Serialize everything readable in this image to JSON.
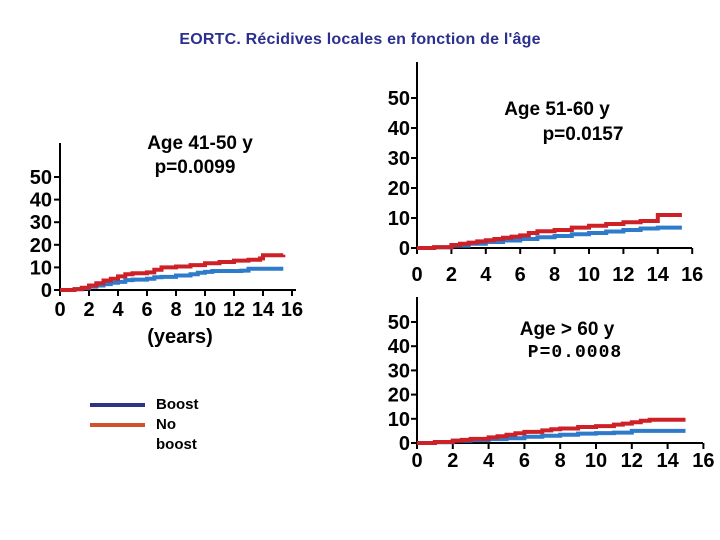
{
  "slide": {
    "title": "EORTC. Récidives locales en fonction de l'âge",
    "title_color": "#2B2F8E"
  },
  "colors": {
    "curve_boost": "#2E7BCB",
    "curve_no_boost": "#CE2027",
    "legend_boost": "#2E3388",
    "legend_no_boost": "#D2502E",
    "axis": "#000000",
    "background": "#FFFFFF"
  },
  "legend": {
    "position": "bottom-left",
    "items": [
      {
        "label": "Boost",
        "color": "#2E3388",
        "label_lines": [
          "Boost"
        ]
      },
      {
        "label": "No boost",
        "color": "#D2502E",
        "label_lines": [
          "No",
          "boost"
        ]
      }
    ]
  },
  "chart_data": [
    {
      "type": "line",
      "subtype": "step-cumulative-incidence",
      "title": "Age 41-50 y",
      "p_value": "p=0.0099",
      "xlabel": "(years)",
      "ylabel": "",
      "xlim": [
        0,
        16.3
      ],
      "ylim": [
        0,
        55
      ],
      "grid": false,
      "x_ticks": [
        0,
        2,
        4,
        6,
        8,
        10,
        12,
        14,
        16
      ],
      "y_ticks": [
        0,
        10,
        20,
        30,
        40,
        50
      ],
      "series": [
        {
          "name": "Boost",
          "color": "#2E7BCB",
          "points": [
            [
              0,
              0
            ],
            [
              1,
              0.3
            ],
            [
              1.5,
              0.8
            ],
            [
              2,
              1.5
            ],
            [
              2.5,
              2
            ],
            [
              3,
              2.6
            ],
            [
              3.5,
              3.2
            ],
            [
              4,
              3.6
            ],
            [
              4.5,
              4.4
            ],
            [
              5,
              4.6
            ],
            [
              6,
              5
            ],
            [
              6.5,
              5.6
            ],
            [
              7,
              5.8
            ],
            [
              8,
              6.4
            ],
            [
              9,
              7
            ],
            [
              9.5,
              7.6
            ],
            [
              10,
              8
            ],
            [
              10.5,
              8.4
            ],
            [
              12.5,
              8.6
            ],
            [
              13,
              9.4
            ],
            [
              15.4,
              9.4
            ]
          ]
        },
        {
          "name": "No boost",
          "color": "#CE2027",
          "points": [
            [
              0,
              0
            ],
            [
              1,
              0.4
            ],
            [
              1.5,
              1
            ],
            [
              2,
              2
            ],
            [
              2.5,
              3
            ],
            [
              3,
              4.2
            ],
            [
              3.5,
              5
            ],
            [
              4,
              6
            ],
            [
              4.5,
              7
            ],
            [
              5,
              7.4
            ],
            [
              6,
              7.8
            ],
            [
              6.5,
              9
            ],
            [
              7,
              10
            ],
            [
              8,
              10.4
            ],
            [
              9,
              11
            ],
            [
              10,
              11.8
            ],
            [
              11,
              12.4
            ],
            [
              12,
              13
            ],
            [
              13,
              13.4
            ],
            [
              13.8,
              14
            ],
            [
              14,
              15.4
            ],
            [
              15.4,
              15.6
            ]
          ]
        }
      ]
    },
    {
      "type": "line",
      "subtype": "step-cumulative-incidence",
      "title": "Age 51-60 y",
      "p_value": "p=0.0157",
      "xlabel": "",
      "ylabel": "",
      "xlim": [
        0,
        16.3
      ],
      "ylim": [
        0,
        55
      ],
      "grid": false,
      "x_ticks": [
        0,
        2,
        4,
        6,
        8,
        10,
        12,
        14,
        16
      ],
      "y_ticks": [
        0,
        10,
        20,
        30,
        40,
        50
      ],
      "series": [
        {
          "name": "Boost",
          "color": "#2E7BCB",
          "points": [
            [
              0,
              0
            ],
            [
              1,
              0.2
            ],
            [
              2,
              0.8
            ],
            [
              3,
              1.4
            ],
            [
              4,
              2
            ],
            [
              5,
              2.5
            ],
            [
              6,
              3
            ],
            [
              7,
              3.6
            ],
            [
              8,
              4
            ],
            [
              9,
              4.6
            ],
            [
              10,
              5
            ],
            [
              11,
              5.5
            ],
            [
              12,
              6
            ],
            [
              13,
              6.5
            ],
            [
              14,
              6.8
            ],
            [
              15.4,
              6.8
            ]
          ]
        },
        {
          "name": "No boost",
          "color": "#CE2027",
          "points": [
            [
              0,
              0
            ],
            [
              1,
              0.3
            ],
            [
              2,
              1
            ],
            [
              2.5,
              1.4
            ],
            [
              3,
              1.8
            ],
            [
              3.5,
              2.2
            ],
            [
              4,
              2.6
            ],
            [
              4.5,
              3
            ],
            [
              5,
              3.4
            ],
            [
              5.5,
              3.8
            ],
            [
              6,
              4.2
            ],
            [
              6.5,
              5
            ],
            [
              7,
              5.6
            ],
            [
              8,
              6
            ],
            [
              9,
              6.8
            ],
            [
              10,
              7.4
            ],
            [
              11,
              8
            ],
            [
              12,
              8.6
            ],
            [
              13,
              9
            ],
            [
              13.9,
              9
            ],
            [
              14,
              11
            ],
            [
              15.4,
              11
            ]
          ]
        }
      ]
    },
    {
      "type": "line",
      "subtype": "step-cumulative-incidence",
      "title": "Age > 60 y",
      "p_value": "P=0.0008",
      "xlabel": "",
      "ylabel": "",
      "xlim": [
        0,
        16.3
      ],
      "ylim": [
        0,
        55
      ],
      "grid": false,
      "x_ticks": [
        0,
        2,
        4,
        6,
        8,
        10,
        12,
        14,
        16
      ],
      "y_ticks": [
        0,
        10,
        20,
        30,
        40,
        50
      ],
      "series": [
        {
          "name": "Boost",
          "color": "#2E7BCB",
          "points": [
            [
              0,
              0
            ],
            [
              1,
              0.3
            ],
            [
              2,
              1
            ],
            [
              3,
              1.2
            ],
            [
              4,
              1.6
            ],
            [
              5,
              2
            ],
            [
              6,
              2.6
            ],
            [
              7,
              3
            ],
            [
              8,
              3.4
            ],
            [
              9,
              3.9
            ],
            [
              10,
              4.1
            ],
            [
              11,
              4.3
            ],
            [
              12,
              5
            ],
            [
              15,
              5
            ]
          ]
        },
        {
          "name": "No boost",
          "color": "#CE2027",
          "points": [
            [
              0,
              0
            ],
            [
              1,
              0.4
            ],
            [
              2,
              1
            ],
            [
              2.5,
              1.3
            ],
            [
              3,
              1.7
            ],
            [
              4,
              2.3
            ],
            [
              4.5,
              2.8
            ],
            [
              5,
              3.4
            ],
            [
              5.5,
              4
            ],
            [
              6,
              4.6
            ],
            [
              7,
              5.2
            ],
            [
              7.5,
              5.7
            ],
            [
              8,
              6
            ],
            [
              9,
              6.6
            ],
            [
              10,
              7
            ],
            [
              11,
              7.6
            ],
            [
              11.5,
              8
            ],
            [
              12,
              8.6
            ],
            [
              12.5,
              9.2
            ],
            [
              13,
              9.6
            ],
            [
              15,
              9.6
            ]
          ]
        }
      ]
    }
  ]
}
